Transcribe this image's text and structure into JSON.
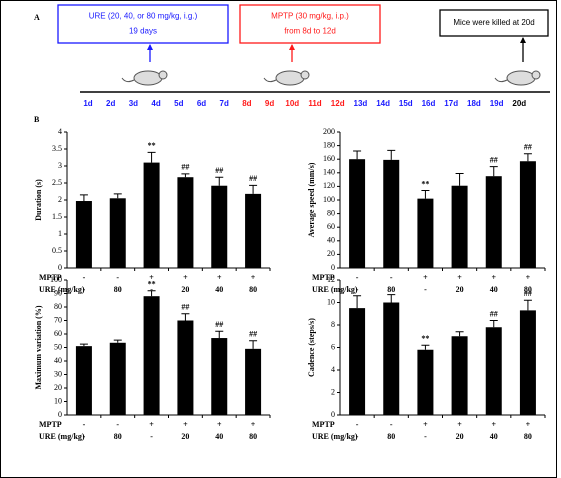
{
  "panel_a": "A",
  "panel_b": "B",
  "timeline": {
    "boxes": [
      {
        "lines": [
          "URE (20, 40, or 80 mg/kg, i.g.)",
          "19 days"
        ],
        "color": "#1a1aff"
      },
      {
        "lines": [
          "MPTP (30 mg/kg, i.p.)",
          "from 8d to 12d"
        ],
        "color": "#ff1a1a"
      },
      {
        "lines": [
          "Mice were killed at 20d"
        ],
        "color": "#000000"
      }
    ],
    "days": [
      {
        "label": "1d",
        "color": "#1a1aff"
      },
      {
        "label": "2d",
        "color": "#1a1aff"
      },
      {
        "label": "3d",
        "color": "#1a1aff"
      },
      {
        "label": "4d",
        "color": "#1a1aff"
      },
      {
        "label": "5d",
        "color": "#1a1aff"
      },
      {
        "label": "6d",
        "color": "#1a1aff"
      },
      {
        "label": "7d",
        "color": "#1a1aff"
      },
      {
        "label": "8d",
        "color": "#ff1a1a"
      },
      {
        "label": "9d",
        "color": "#ff1a1a"
      },
      {
        "label": "10d",
        "color": "#ff1a1a"
      },
      {
        "label": "11d",
        "color": "#ff1a1a"
      },
      {
        "label": "12d",
        "color": "#ff1a1a"
      },
      {
        "label": "13d",
        "color": "#1a1aff"
      },
      {
        "label": "14d",
        "color": "#1a1aff"
      },
      {
        "label": "15d",
        "color": "#1a1aff"
      },
      {
        "label": "16d",
        "color": "#1a1aff"
      },
      {
        "label": "17d",
        "color": "#1a1aff"
      },
      {
        "label": "18d",
        "color": "#1a1aff"
      },
      {
        "label": "19d",
        "color": "#1a1aff"
      },
      {
        "label": "20d",
        "color": "#000000"
      }
    ]
  },
  "chart_data": [
    {
      "type": "bar",
      "y_label": "Duration (s)",
      "color": "#000000",
      "values": [
        1.97,
        2.05,
        3.1,
        2.67,
        2.42,
        2.18
      ],
      "errors": [
        0.18,
        0.13,
        0.3,
        0.1,
        0.25,
        0.25
      ],
      "significance": [
        null,
        null,
        "**",
        "##",
        "##",
        "##"
      ],
      "ylim": [
        0,
        4
      ],
      "yticks": [
        0,
        0.5,
        1,
        1.5,
        2,
        2.5,
        3,
        3.5,
        4
      ],
      "rows": [
        {
          "name": "MPTP",
          "values": [
            "-",
            "-",
            "+",
            "+",
            "+",
            "+"
          ]
        },
        {
          "name": "URE (mg/kg)",
          "values": [
            "-",
            "80",
            "-",
            "20",
            "40",
            "80"
          ]
        }
      ]
    },
    {
      "type": "bar",
      "y_label": "Average speed (mm/s)",
      "color": "#000000",
      "values": [
        160,
        159,
        102,
        121,
        135,
        157
      ],
      "errors": [
        12,
        14,
        12,
        18,
        14,
        11
      ],
      "significance": [
        null,
        null,
        "**",
        null,
        "##",
        "##"
      ],
      "ylim": [
        0,
        200
      ],
      "yticks": [
        0,
        20,
        40,
        60,
        80,
        100,
        120,
        140,
        160,
        180,
        200
      ],
      "rows": [
        {
          "name": "MPTP",
          "values": [
            "-",
            "-",
            "+",
            "+",
            "+",
            "+"
          ]
        },
        {
          "name": "URE (mg/kg)",
          "values": [
            "-",
            "80",
            "-",
            "20",
            "40",
            "80"
          ]
        }
      ]
    },
    {
      "type": "bar",
      "y_label": "Maximum variation (%)",
      "color": "#000000",
      "values": [
        51,
        53.5,
        88,
        70,
        57,
        49
      ],
      "errors": [
        1.5,
        2,
        4,
        5,
        5,
        6
      ],
      "significance": [
        null,
        null,
        "**",
        "##",
        "##",
        "##"
      ],
      "ylim": [
        0,
        100
      ],
      "yticks": [
        0,
        10,
        20,
        30,
        40,
        50,
        60,
        70,
        80,
        90,
        100
      ],
      "rows": [
        {
          "name": "MPTP",
          "values": [
            "-",
            "-",
            "+",
            "+",
            "+",
            "+"
          ]
        },
        {
          "name": "URE (mg/kg)",
          "values": [
            "-",
            "80",
            "-",
            "20",
            "40",
            "80"
          ]
        }
      ]
    },
    {
      "type": "bar",
      "y_label": "Cadence (steps/s)",
      "color": "#000000",
      "values": [
        9.5,
        10,
        5.8,
        7,
        7.8,
        9.3
      ],
      "errors": [
        1.1,
        0.7,
        0.4,
        0.4,
        0.6,
        0.9
      ],
      "significance": [
        null,
        null,
        "**",
        null,
        "##",
        "##"
      ],
      "ylim": [
        0,
        12
      ],
      "yticks": [
        0,
        2,
        4,
        6,
        8,
        10,
        12
      ],
      "rows": [
        {
          "name": "MPTP",
          "values": [
            "-",
            "-",
            "+",
            "+",
            "+",
            "+"
          ]
        },
        {
          "name": "URE (mg/kg)",
          "values": [
            "-",
            "80",
            "-",
            "20",
            "40",
            "80"
          ]
        }
      ]
    }
  ]
}
